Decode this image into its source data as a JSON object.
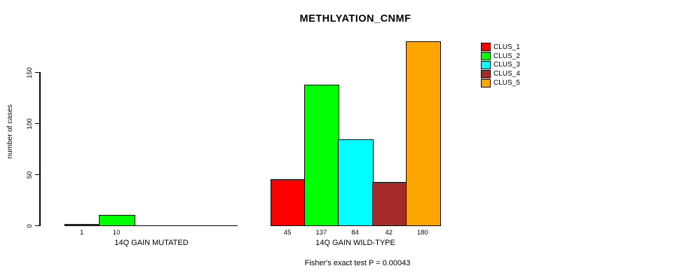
{
  "chart_data": {
    "type": "bar",
    "title": "METHLYATION_CNMF",
    "ylabel": "number of cases",
    "xlabel": "",
    "yticks": [
      0,
      50,
      100,
      150
    ],
    "ylim": [
      0,
      180
    ],
    "grid": false,
    "annotation": "Fisher's exact test P = 0.00043",
    "legend": {
      "position": "right",
      "entries": [
        {
          "label": "CLUS_1",
          "color": "#FF0000"
        },
        {
          "label": "CLUS_2",
          "color": "#00FF00"
        },
        {
          "label": "CLUS_3",
          "color": "#00FFFF"
        },
        {
          "label": "CLUS_4",
          "color": "#A52A2A"
        },
        {
          "label": "CLUS_5",
          "color": "#FFA500"
        }
      ]
    },
    "groups": [
      {
        "label": "14Q GAIN MUTATED",
        "bars": [
          {
            "cluster": "CLUS_1",
            "value": 1,
            "color": "#FF0000"
          },
          {
            "cluster": "CLUS_2",
            "value": 10,
            "color": "#00FF00"
          }
        ]
      },
      {
        "label": "14Q GAIN WILD-TYPE",
        "bars": [
          {
            "cluster": "CLUS_1",
            "value": 45,
            "color": "#FF0000"
          },
          {
            "cluster": "CLUS_2",
            "value": 137,
            "color": "#00FF00"
          },
          {
            "cluster": "CLUS_3",
            "value": 84,
            "color": "#00FFFF"
          },
          {
            "cluster": "CLUS_4",
            "value": 42,
            "color": "#A52A2A"
          },
          {
            "cluster": "CLUS_5",
            "value": 180,
            "color": "#FFA500"
          }
        ]
      }
    ]
  }
}
